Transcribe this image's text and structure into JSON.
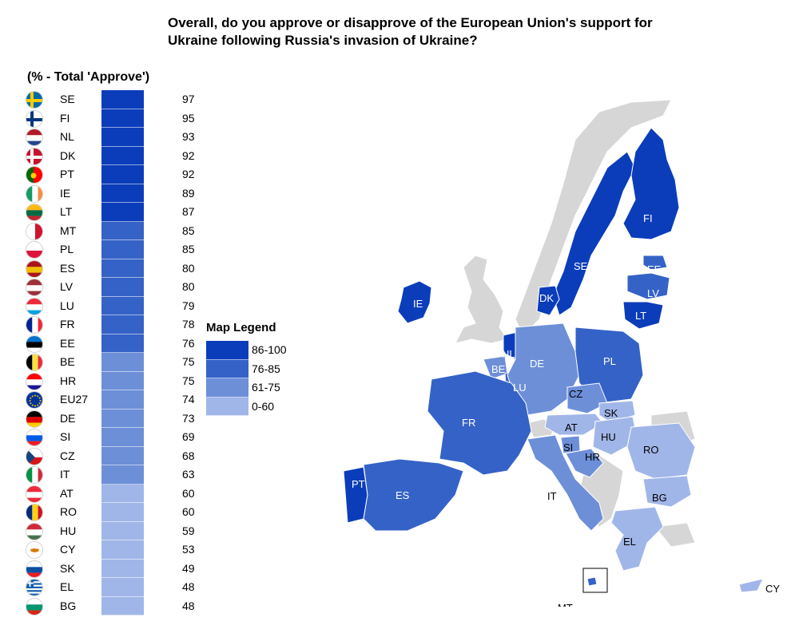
{
  "title": "Overall, do you approve or disapprove of the European Union's support for Ukraine following Russia's invasion of Ukraine?",
  "subtitle": "(% - Total 'Approve')",
  "colors": {
    "c86": "#0b3dbb",
    "c76": "#3562c7",
    "c61": "#6d8fd8",
    "c0": "#a1b6e8",
    "grey": "#d6d6d6"
  },
  "chart_data": {
    "type": "bar",
    "title": "Overall, do you approve or disapprove of the European Union's support for Ukraine following Russia's invasion of Ukraine?",
    "ylabel": "(% - Total 'Approve')",
    "categories": [
      "SE",
      "FI",
      "NL",
      "DK",
      "PT",
      "IE",
      "LT",
      "MT",
      "PL",
      "ES",
      "LV",
      "LU",
      "FR",
      "EE",
      "BE",
      "HR",
      "EU27",
      "DE",
      "SI",
      "CZ",
      "IT",
      "AT",
      "RO",
      "HU",
      "CY",
      "SK",
      "EL",
      "BG"
    ],
    "values": [
      97,
      95,
      93,
      92,
      92,
      89,
      87,
      85,
      85,
      80,
      80,
      79,
      78,
      76,
      75,
      75,
      74,
      73,
      69,
      68,
      63,
      60,
      60,
      59,
      53,
      49,
      48,
      48
    ],
    "legend": [
      {
        "label": "86-100",
        "min": 86,
        "max": 100
      },
      {
        "label": "76-85",
        "min": 76,
        "max": 85
      },
      {
        "label": "61-75",
        "min": 61,
        "max": 75
      },
      {
        "label": "0-60",
        "min": 0,
        "max": 60
      }
    ],
    "legend_title": "Map Legend"
  },
  "map_labels": [
    "SE",
    "FI",
    "EE",
    "LV",
    "LT",
    "DK",
    "IE",
    "NL",
    "BE",
    "LU",
    "DE",
    "PL",
    "CZ",
    "SK",
    "AT",
    "HU",
    "SI",
    "HR",
    "RO",
    "BG",
    "FR",
    "PT",
    "ES",
    "IT",
    "EL",
    "MT",
    "CY"
  ],
  "flags": {
    "SE": "sweden-flag-icon",
    "FI": "finland-flag-icon",
    "NL": "netherlands-flag-icon",
    "DK": "denmark-flag-icon",
    "PT": "portugal-flag-icon",
    "IE": "ireland-flag-icon",
    "LT": "lithuania-flag-icon",
    "MT": "malta-flag-icon",
    "PL": "poland-flag-icon",
    "ES": "spain-flag-icon",
    "LV": "latvia-flag-icon",
    "LU": "luxembourg-flag-icon",
    "FR": "france-flag-icon",
    "EE": "estonia-flag-icon",
    "BE": "belgium-flag-icon",
    "HR": "croatia-flag-icon",
    "EU27": "eu-flag-icon",
    "DE": "germany-flag-icon",
    "SI": "slovenia-flag-icon",
    "CZ": "czechia-flag-icon",
    "IT": "italy-flag-icon",
    "AT": "austria-flag-icon",
    "RO": "romania-flag-icon",
    "HU": "hungary-flag-icon",
    "CY": "cyprus-flag-icon",
    "SK": "slovakia-flag-icon",
    "EL": "greece-flag-icon",
    "BG": "bulgaria-flag-icon"
  }
}
